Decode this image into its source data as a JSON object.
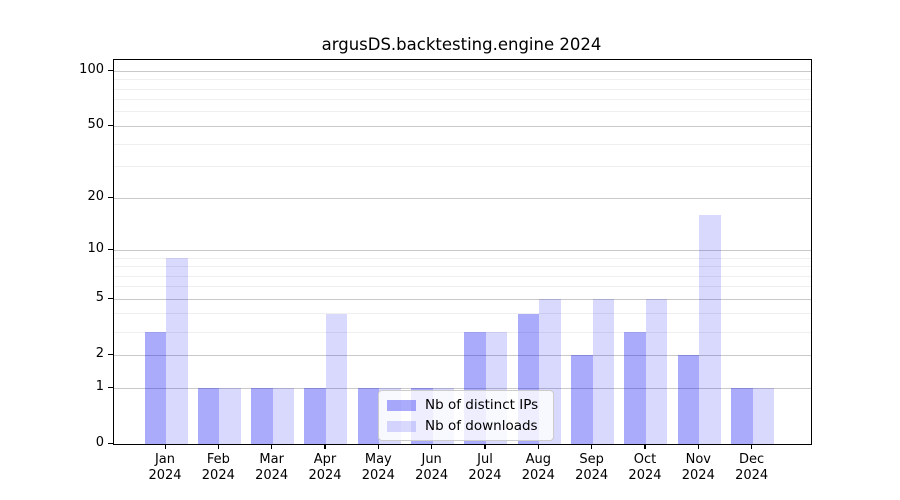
{
  "chart_data": {
    "type": "bar",
    "title": "argusDS.backtesting.engine 2024",
    "x_year_label": "2024",
    "categories": [
      "Jan",
      "Feb",
      "Mar",
      "Apr",
      "May",
      "Jun",
      "Jul",
      "Aug",
      "Sep",
      "Oct",
      "Nov",
      "Dec"
    ],
    "series": [
      {
        "name": "Nb of distinct IPs",
        "color": "#ababfa",
        "fill": "rgba(13,13,242,0.345)",
        "values": [
          3,
          1,
          1,
          1,
          1,
          1,
          3,
          4,
          2,
          3,
          2,
          1
        ]
      },
      {
        "name": "Nb of downloads",
        "color": "#dadafa",
        "fill": "rgba(13,13,242,0.155)",
        "values": [
          9,
          1,
          1,
          4,
          1,
          1,
          3,
          5,
          5,
          5,
          16,
          1
        ]
      }
    ],
    "yscale": "log1p",
    "ylim": [
      0,
      115
    ],
    "xlabel": "",
    "ylabel": "",
    "y_major_ticks": [
      0,
      1,
      2,
      5,
      10,
      20,
      50,
      100
    ],
    "y_minor_gridlines": [
      3,
      4,
      6,
      7,
      8,
      9,
      30,
      40,
      60,
      70,
      80,
      90
    ],
    "grid": "both",
    "legend_location": "inside lower-center"
  },
  "colors": {
    "background": "#ffffff",
    "axis": "#000000",
    "major_grid": "#c9c9c9",
    "minor_grid": "#efefef",
    "text": "#000000"
  }
}
